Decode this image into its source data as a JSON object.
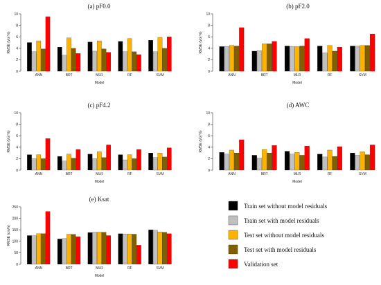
{
  "colors": {
    "train_without": "#000000",
    "train_with": "#c0c0c0",
    "test_without": "#ffb300",
    "test_with": "#7f5f00",
    "validation": "#ff0000"
  },
  "legend": [
    {
      "label": "Train set without model residuals",
      "color_key": "train_without"
    },
    {
      "label": "Train set with model residuals",
      "color_key": "train_with"
    },
    {
      "label": "Test set without model residuals",
      "color_key": "test_without"
    },
    {
      "label": "Test set with model residuals",
      "color_key": "test_with"
    },
    {
      "label": "Validation set",
      "color_key": "validation"
    }
  ],
  "chart_data": [
    {
      "type": "bar",
      "title": "(a) pF0.0",
      "xlabel": "Model",
      "ylabel": "RMSE (Vol %)",
      "categories": [
        "ANN",
        "BRT",
        "MLR",
        "RF",
        "SVM"
      ],
      "ylim": [
        0,
        10
      ],
      "yticks": [
        0,
        2,
        4,
        6,
        8,
        10
      ],
      "series": [
        {
          "name": "Train set without model residuals",
          "values": [
            5.0,
            4.2,
            5.1,
            5.2,
            5.4
          ]
        },
        {
          "name": "Train set with model residuals",
          "values": [
            3.4,
            2.8,
            3.5,
            3.4,
            3.4
          ]
        },
        {
          "name": "Test set without model residuals",
          "values": [
            5.3,
            5.8,
            5.3,
            5.7,
            5.9
          ]
        },
        {
          "name": "Test set with model residuals",
          "values": [
            3.9,
            4.0,
            3.9,
            3.4,
            4.0
          ]
        },
        {
          "name": "Validation set",
          "values": [
            9.5,
            3.1,
            3.3,
            2.9,
            6.0
          ]
        }
      ]
    },
    {
      "type": "bar",
      "title": "(b) pF2.0",
      "xlabel": "Model",
      "ylabel": "RMSE (Vol %)",
      "categories": [
        "ANN",
        "BRT",
        "MLR",
        "RF",
        "SVM"
      ],
      "ylim": [
        0,
        10
      ],
      "yticks": [
        0,
        2,
        4,
        6,
        8,
        10
      ],
      "series": [
        {
          "name": "Train set without model residuals",
          "values": [
            4.3,
            3.5,
            4.4,
            4.4,
            4.4
          ]
        },
        {
          "name": "Train set with model residuals",
          "values": [
            4.3,
            3.6,
            4.3,
            3.2,
            4.4
          ]
        },
        {
          "name": "Test set without model residuals",
          "values": [
            4.5,
            4.8,
            4.3,
            4.5,
            4.5
          ]
        },
        {
          "name": "Test set with model residuals",
          "values": [
            4.4,
            4.8,
            4.4,
            3.5,
            4.5
          ]
        },
        {
          "name": "Validation set",
          "values": [
            7.6,
            5.2,
            5.7,
            4.2,
            6.5
          ]
        }
      ]
    },
    {
      "type": "bar",
      "title": "(c) pF4.2",
      "xlabel": "Model",
      "ylabel": "RMSE (Vol %)",
      "categories": [
        "ANN",
        "BRT",
        "MLR",
        "RF",
        "SVM"
      ],
      "ylim": [
        0,
        10
      ],
      "yticks": [
        0,
        2,
        4,
        6,
        8,
        10
      ],
      "series": [
        {
          "name": "Train set without model residuals",
          "values": [
            2.7,
            2.4,
            2.8,
            2.7,
            3.0
          ]
        },
        {
          "name": "Train set with model residuals",
          "values": [
            2.0,
            1.6,
            2.0,
            1.8,
            2.2
          ]
        },
        {
          "name": "Test set without model residuals",
          "values": [
            2.7,
            2.8,
            3.2,
            2.7,
            3.0
          ]
        },
        {
          "name": "Test set with model residuals",
          "values": [
            2.0,
            2.1,
            2.2,
            2.0,
            2.3
          ]
        },
        {
          "name": "Validation set",
          "values": [
            5.5,
            3.6,
            4.4,
            3.6,
            3.9
          ]
        }
      ]
    },
    {
      "type": "bar",
      "title": "(d) AWC",
      "xlabel": "Model",
      "ylabel": "RMSE (Vol %)",
      "categories": [
        "ANN",
        "BRT",
        "MLR",
        "RF",
        "SVM"
      ],
      "ylim": [
        0,
        10
      ],
      "yticks": [
        0,
        2,
        4,
        6,
        8,
        10
      ],
      "series": [
        {
          "name": "Train set without model residuals",
          "values": [
            3.1,
            2.6,
            3.3,
            2.8,
            3.0
          ]
        },
        {
          "name": "Train set with model residuals",
          "values": [
            2.8,
            2.1,
            2.8,
            2.3,
            2.6
          ]
        },
        {
          "name": "Test set without model residuals",
          "values": [
            3.5,
            3.6,
            3.1,
            3.5,
            3.2
          ]
        },
        {
          "name": "Test set with model residuals",
          "values": [
            3.0,
            3.0,
            2.6,
            2.4,
            2.7
          ]
        },
        {
          "name": "Validation set",
          "values": [
            5.3,
            4.3,
            4.2,
            4.1,
            4.4
          ]
        }
      ]
    },
    {
      "type": "bar",
      "title": "(e) Ksat",
      "xlabel": "Model",
      "ylabel": "RMSE (cm/h)",
      "categories": [
        "ANN",
        "BRT",
        "MLR",
        "RF",
        "SVM"
      ],
      "ylim": [
        0,
        250
      ],
      "yticks": [
        0,
        50,
        100,
        150,
        200,
        250
      ],
      "series": [
        {
          "name": "Train set without model residuals",
          "values": [
            125,
            110,
            138,
            133,
            150
          ]
        },
        {
          "name": "Train set with model residuals",
          "values": [
            124,
            112,
            140,
            132,
            148
          ]
        },
        {
          "name": "Test set without model residuals",
          "values": [
            133,
            131,
            140,
            132,
            141
          ]
        },
        {
          "name": "Test set with model residuals",
          "values": [
            133,
            130,
            139,
            131,
            139
          ]
        },
        {
          "name": "Validation set",
          "values": [
            230,
            120,
            125,
            83,
            133
          ]
        }
      ]
    }
  ]
}
